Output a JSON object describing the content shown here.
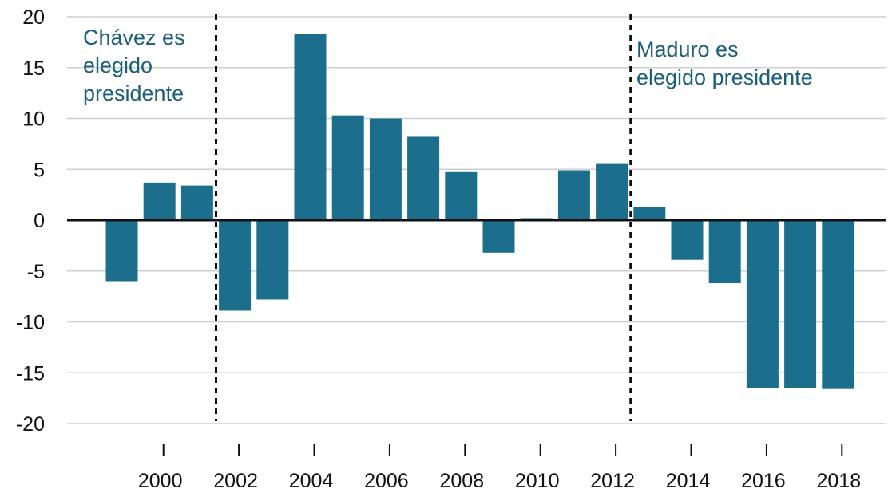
{
  "chart_data": {
    "type": "bar",
    "title": "",
    "xlabel": "",
    "ylabel": "",
    "ylim": [
      -20,
      20
    ],
    "y_ticks": [
      20,
      15,
      10,
      5,
      0,
      -5,
      -10,
      -15,
      -20
    ],
    "y_tick_labels": [
      "20",
      "15",
      "10",
      "5",
      "0",
      "-5",
      "-10",
      "-15",
      "-20"
    ],
    "x_tick_labels": [
      "2000",
      "2002",
      "2004",
      "2006",
      "2008",
      "2010",
      "2012",
      "2014",
      "2016",
      "2018"
    ],
    "categories": [
      1999,
      2000,
      2001,
      2002,
      2003,
      2004,
      2005,
      2006,
      2007,
      2008,
      2009,
      2010,
      2011,
      2012,
      2013,
      2014,
      2015,
      2016,
      2017,
      2018
    ],
    "values": [
      -6.0,
      3.7,
      3.4,
      -8.9,
      -7.8,
      18.3,
      10.3,
      10.0,
      8.2,
      4.8,
      -3.2,
      0.2,
      4.9,
      5.6,
      1.3,
      -3.9,
      -6.2,
      -16.5,
      -16.5,
      -16.6
    ],
    "bar_color": "#1b6e8c",
    "grid": true,
    "annotations": [
      {
        "lines": [
          "Chávez es",
          "elegido",
          "presidente"
        ],
        "color": "#1b5f7a"
      },
      {
        "lines": [
          "Maduro es",
          "elegido presidente"
        ],
        "color": "#1b5f7a"
      }
    ]
  }
}
